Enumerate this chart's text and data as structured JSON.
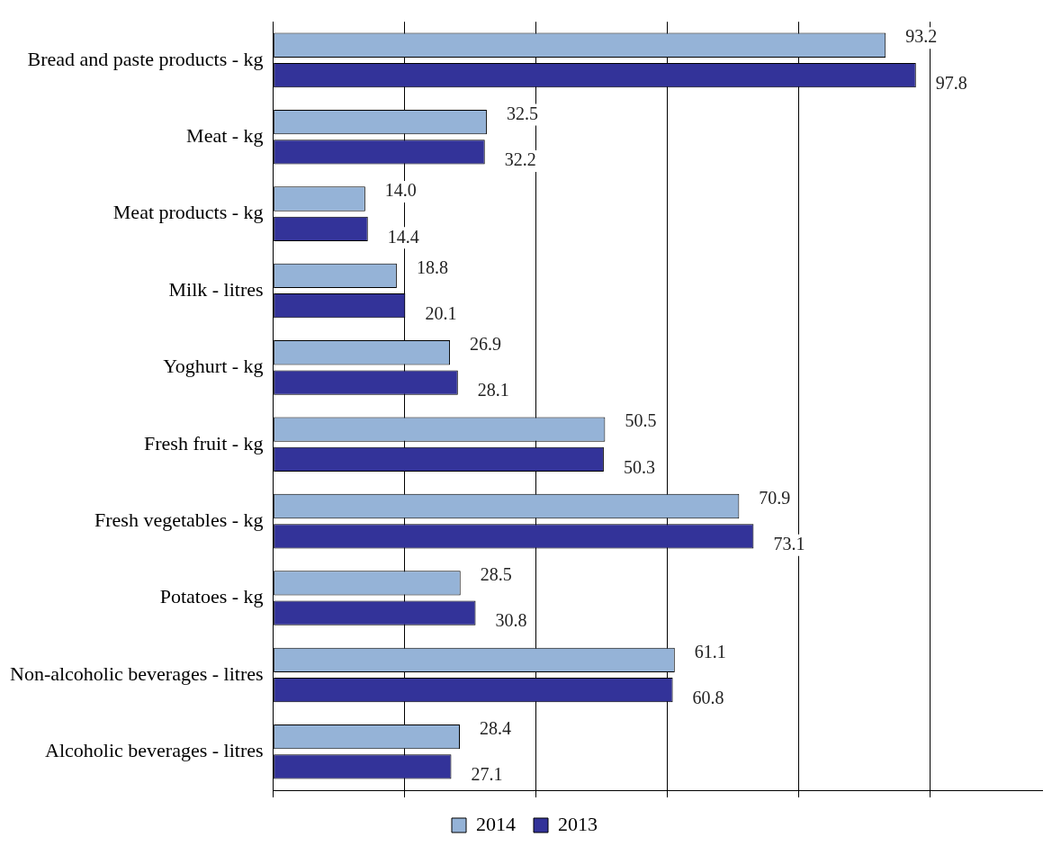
{
  "chart_data": {
    "type": "bar",
    "orientation": "horizontal",
    "categories": [
      "Bread and paste products - kg",
      "Meat - kg",
      "Meat products - kg",
      "Milk - litres",
      "Yoghurt - kg",
      "Fresh fruit - kg",
      "Fresh vegetables - kg",
      "Potatoes - kg",
      "Non-alcoholic beverages - litres",
      "Alcoholic beverages - litres"
    ],
    "series": [
      {
        "name": "2014",
        "color": "#95b3d7",
        "values": [
          93.2,
          32.5,
          14.0,
          18.8,
          26.9,
          50.5,
          70.9,
          28.5,
          61.1,
          28.4
        ],
        "value_labels": [
          "93.2",
          "32.5",
          "14.0",
          "18.8",
          "26.9",
          "50.5",
          "70.9",
          "28.5",
          "61.1",
          "28.4"
        ]
      },
      {
        "name": "2013",
        "color": "#333399",
        "values": [
          97.8,
          32.2,
          14.4,
          20.1,
          28.1,
          50.3,
          73.1,
          30.8,
          60.8,
          27.1
        ],
        "value_labels": [
          "97.8",
          "32.2",
          "14.4",
          "20.1",
          "28.1",
          "50.3",
          "73.1",
          "30.8",
          "60.8",
          "27.1"
        ]
      }
    ],
    "xlim": [
      0,
      117
    ],
    "xticks": [
      {
        "value": 0,
        "label": null
      },
      {
        "value": 20,
        "label": null
      },
      {
        "value": 40,
        "label": null
      },
      {
        "value": 60,
        "label": null
      },
      {
        "value": 80,
        "label": null
      },
      {
        "value": 100,
        "label": null
      }
    ],
    "grid": "x",
    "legend": "bottom",
    "tick_labels": "y"
  }
}
